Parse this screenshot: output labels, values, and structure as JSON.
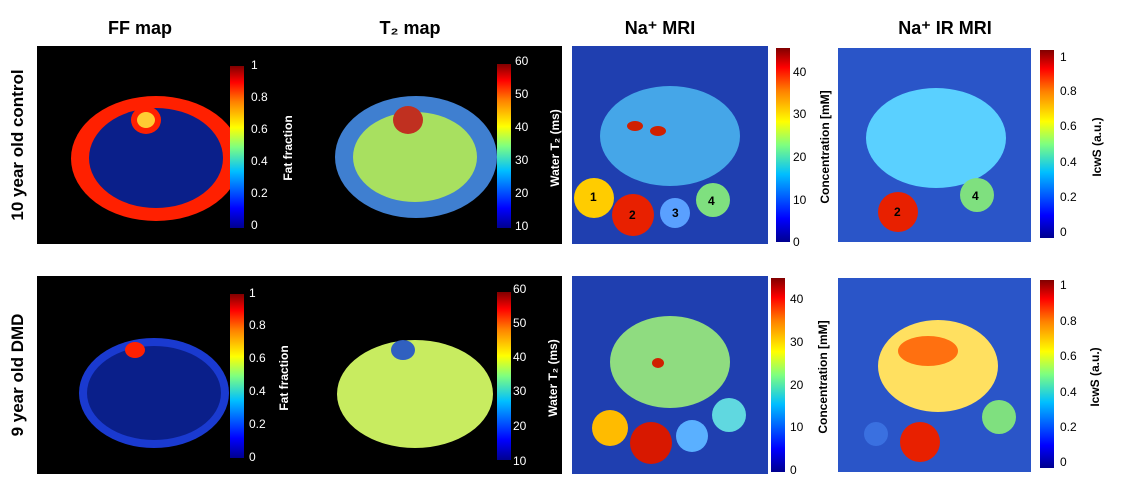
{
  "columns": [
    "FF map",
    "T₂ map",
    "Na⁺ MRI",
    "Na⁺ IR MRI"
  ],
  "rows": [
    "10 year old control",
    "9 year old DMD"
  ],
  "colorbars": {
    "ff": {
      "label": "Fat fraction",
      "ticks": [
        "1",
        "0.8",
        "0.6",
        "0.4",
        "0.2",
        "0"
      ]
    },
    "t2": {
      "label": "Water T₂  (ms)",
      "ticks": [
        "60",
        "50",
        "40",
        "30",
        "20",
        "10"
      ]
    },
    "na": {
      "label": "Concentration [mM]",
      "ticks": [
        "40",
        "30",
        "20",
        "10",
        "0"
      ]
    },
    "ir": {
      "label": "IᴄᴡS  (a.u.)",
      "ticks": [
        "1",
        "0.8",
        "0.6",
        "0.4",
        "0.2",
        "0"
      ]
    }
  },
  "vial_labels": [
    "1",
    "2",
    "3",
    "4"
  ],
  "colors": {
    "panel_black": "#000000",
    "panel_blue": "#1f3fb0"
  }
}
